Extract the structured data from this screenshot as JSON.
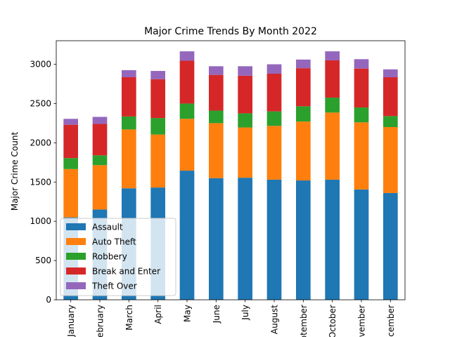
{
  "chart_data": {
    "type": "bar",
    "stacked": true,
    "title": "Major Crime Trends By Month 2022",
    "xlabel": "",
    "ylabel": "Major Crime Count",
    "ylim": [
      0,
      3300
    ],
    "yticks": [
      0,
      500,
      1000,
      1500,
      2000,
      2500,
      3000
    ],
    "grid": false,
    "legend_position": "lower-left",
    "categories": [
      "January",
      "February",
      "March",
      "April",
      "May",
      "June",
      "July",
      "August",
      "September",
      "October",
      "November",
      "December"
    ],
    "series": [
      {
        "name": "Assault",
        "color": "#1f77b4",
        "values": [
          1050,
          1150,
          1420,
          1430,
          1645,
          1550,
          1555,
          1530,
          1520,
          1530,
          1405,
          1360
        ]
      },
      {
        "name": "Auto Theft",
        "color": "#ff7f0e",
        "values": [
          615,
          565,
          750,
          675,
          660,
          700,
          640,
          685,
          750,
          855,
          855,
          840
        ]
      },
      {
        "name": "Robbery",
        "color": "#2ca02c",
        "values": [
          140,
          125,
          165,
          210,
          195,
          160,
          180,
          185,
          195,
          190,
          190,
          140
        ]
      },
      {
        "name": "Break and Enter",
        "color": "#d62728",
        "values": [
          425,
          400,
          500,
          495,
          545,
          455,
          480,
          480,
          485,
          475,
          495,
          495
        ]
      },
      {
        "name": "Theft Over",
        "color": "#9467bd",
        "values": [
          75,
          90,
          90,
          105,
          120,
          110,
          120,
          120,
          110,
          115,
          120,
          100
        ]
      }
    ]
  }
}
